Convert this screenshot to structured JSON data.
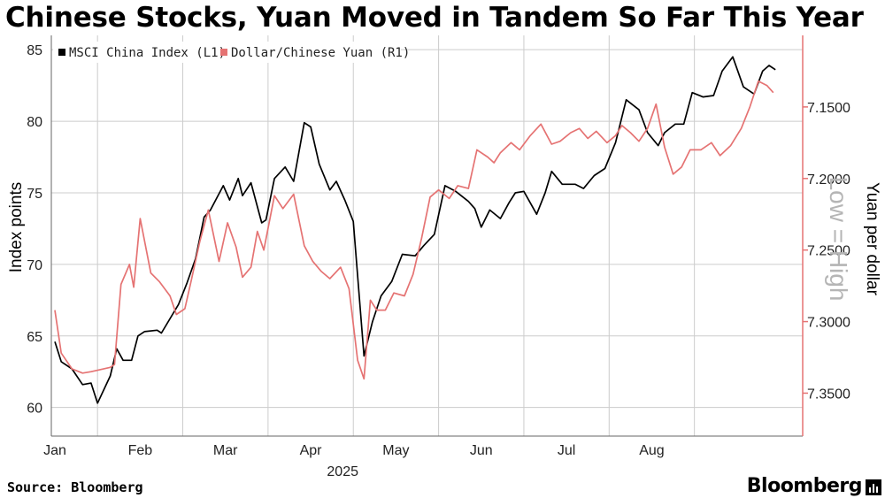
{
  "title": "Chinese Stocks, Yuan Moved in Tandem So Far This Year",
  "source": "Source: Bloomberg",
  "brand": "Bloomberg",
  "chart_data": {
    "type": "line",
    "year_label": "2025",
    "months": [
      "Jan",
      "Feb",
      "Mar",
      "Apr",
      "May",
      "Jun",
      "Jul",
      "Aug"
    ],
    "x_range": [
      0,
      34
    ],
    "y_left": {
      "label": "Index points",
      "range": [
        58,
        86
      ],
      "ticks": [
        60,
        65,
        70,
        75,
        80,
        85
      ]
    },
    "y_right": {
      "label": "Yuan per dollar",
      "range": [
        7.1,
        7.38
      ],
      "inverted": true,
      "ticks": [
        "7.1500",
        "7.2000",
        "7.2500",
        "7.3000",
        "7.3500"
      ],
      "tick_values": [
        7.15,
        7.2,
        7.25,
        7.3,
        7.35
      ],
      "annotation": "Low = High"
    },
    "legend": [
      "MSCI China Index (L1)",
      "Dollar/Chinese Yuan  (R1)"
    ],
    "colors": {
      "msci": "#000000",
      "yuan": "#e57373",
      "grid": "#cccccc"
    },
    "series": [
      {
        "name": "MSCI China Index (L1)",
        "axis": "left",
        "x": [
          0,
          0.3,
          0.8,
          1.3,
          1.7,
          2.0,
          2.6,
          2.9,
          3.2,
          3.6,
          3.9,
          4.2,
          4.8,
          5.0,
          5.8,
          6.2,
          6.6,
          7.0,
          7.3,
          7.9,
          8.2,
          8.6,
          8.8,
          9.2,
          9.7,
          9.9,
          10.3,
          10.8,
          11.2,
          11.7,
          12.0,
          12.4,
          12.9,
          13.2,
          13.6,
          14.0,
          14.5,
          14.9,
          15.3,
          15.8,
          16.3,
          16.9,
          17.3,
          17.8,
          18.3,
          18.8,
          19.4,
          19.7,
          20.0,
          20.4,
          20.9,
          21.3,
          21.6,
          22.0,
          22.6,
          23.0,
          23.3,
          23.8,
          24.4,
          24.8,
          25.3,
          25.8,
          26.3,
          26.8,
          27.4,
          27.8,
          28.3,
          28.6,
          29.1,
          29.5,
          29.9,
          30.4,
          30.9,
          31.3,
          31.8,
          32.3,
          32.8,
          33.2,
          33.5,
          33.8
        ],
        "values": [
          64.6,
          63.2,
          62.7,
          61.6,
          61.7,
          60.3,
          62.2,
          64.1,
          63.3,
          63.3,
          65.0,
          65.3,
          65.4,
          65.2,
          67.2,
          68.7,
          70.4,
          73.3,
          73.8,
          75.5,
          74.5,
          76.0,
          74.8,
          75.7,
          72.9,
          73.1,
          76.0,
          76.8,
          75.8,
          79.9,
          79.6,
          77.0,
          75.2,
          75.8,
          74.5,
          73.0,
          63.6,
          66.0,
          67.8,
          68.8,
          70.7,
          70.6,
          71.3,
          72.1,
          75.5,
          75.1,
          74.4,
          73.9,
          72.6,
          73.8,
          73.2,
          74.3,
          75.0,
          75.1,
          73.5,
          75.0,
          76.5,
          75.6,
          75.6,
          75.3,
          76.2,
          76.7,
          78.5,
          81.5,
          80.8,
          79.2,
          78.3,
          79.2,
          79.8,
          79.8,
          82.0,
          81.7,
          81.8,
          83.5,
          84.5,
          82.4,
          81.9,
          83.5,
          83.9,
          83.6
        ]
      },
      {
        "name": "Dollar/Chinese Yuan  (R1)",
        "axis": "right",
        "x": [
          0,
          0.3,
          0.8,
          1.3,
          1.7,
          2.0,
          2.6,
          2.8,
          3.1,
          3.5,
          3.7,
          4.0,
          4.5,
          4.9,
          5.4,
          5.7,
          6.1,
          6.4,
          6.8,
          7.2,
          7.7,
          8.1,
          8.5,
          8.8,
          9.2,
          9.5,
          9.8,
          10.3,
          10.7,
          11.2,
          11.7,
          12.1,
          12.5,
          12.9,
          13.4,
          13.8,
          14.2,
          14.5,
          14.8,
          15.1,
          15.5,
          15.9,
          16.4,
          16.8,
          17.2,
          17.6,
          18.0,
          18.5,
          18.9,
          19.4,
          19.8,
          20.3,
          20.6,
          20.9,
          21.4,
          21.8,
          22.3,
          22.8,
          23.3,
          23.7,
          24.2,
          24.6,
          25.0,
          25.4,
          25.9,
          26.3,
          26.6,
          27.0,
          27.4,
          27.8,
          28.2,
          28.6,
          29.0,
          29.4,
          29.8,
          30.3,
          30.8,
          31.2,
          31.7,
          32.2,
          32.6,
          33.0,
          33.4,
          33.7
        ],
        "values": [
          7.292,
          7.322,
          7.333,
          7.336,
          7.335,
          7.334,
          7.332,
          7.33,
          7.274,
          7.26,
          7.276,
          7.228,
          7.266,
          7.272,
          7.282,
          7.295,
          7.291,
          7.271,
          7.244,
          7.222,
          7.258,
          7.231,
          7.248,
          7.269,
          7.262,
          7.237,
          7.25,
          7.212,
          7.221,
          7.211,
          7.247,
          7.258,
          7.265,
          7.27,
          7.262,
          7.277,
          7.327,
          7.34,
          7.285,
          7.292,
          7.292,
          7.28,
          7.282,
          7.267,
          7.242,
          7.213,
          7.208,
          7.214,
          7.205,
          7.207,
          7.18,
          7.185,
          7.189,
          7.182,
          7.175,
          7.18,
          7.17,
          7.162,
          7.176,
          7.174,
          7.168,
          7.165,
          7.172,
          7.167,
          7.175,
          7.17,
          7.163,
          7.168,
          7.174,
          7.165,
          7.148,
          7.178,
          7.197,
          7.192,
          7.18,
          7.18,
          7.175,
          7.184,
          7.177,
          7.165,
          7.15,
          7.132,
          7.135,
          7.14
        ]
      }
    ]
  }
}
